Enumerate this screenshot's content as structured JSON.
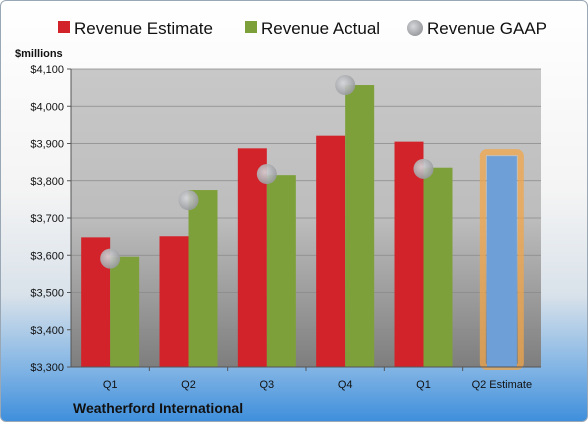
{
  "chart_data": {
    "type": "bar",
    "company": "Weatherford International",
    "unit_label": "$millions",
    "categories": [
      "Q1",
      "Q2",
      "Q3",
      "Q4",
      "Q1",
      "Q2 Estimate"
    ],
    "series": [
      {
        "name": "Revenue Estimate",
        "values": [
          3648,
          3651,
          3887,
          3921,
          3905,
          null
        ],
        "color": "#d3232a"
      },
      {
        "name": "Revenue Actual",
        "values": [
          3596,
          3775,
          3815,
          4057,
          3835,
          null
        ],
        "color": "#7ea03a"
      },
      {
        "name": "Revenue GAAP",
        "values": [
          3591,
          3748,
          3818,
          4057,
          3832,
          null
        ],
        "color": "#a6a8ac",
        "marker": "circle"
      }
    ],
    "projection": {
      "category": "Q2 Estimate",
      "value": 3866,
      "color": "#6e9fd6",
      "outline": "#f0a64a"
    },
    "ylim": [
      3300,
      4100
    ],
    "yticks": [
      "$3,300",
      "$3,400",
      "$3,500",
      "$3,600",
      "$3,700",
      "$3,800",
      "$3,900",
      "$4,000",
      "$4,100"
    ],
    "legend_position": "top",
    "grid": true
  }
}
